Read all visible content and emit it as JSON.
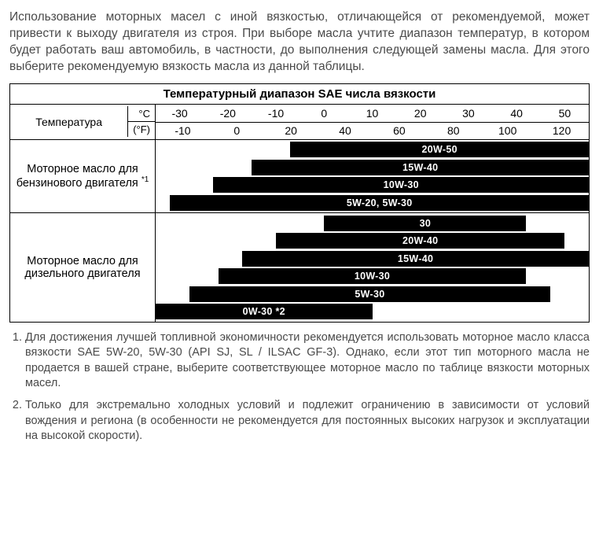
{
  "intro": "Использование моторных масел с иной вязкостью, отличающейся от рекомендуемой, может привести к выходу двигателя из строя. При выборе масла учтите диапазон температур, в котором будет работать ваш автомобиль, в частности, до выполнения следующей замены масла. Для этого выберите рекомендуемую вязкость масла из данной таблицы.",
  "table": {
    "title": "Температурный диапазон SAE числа вязкости",
    "temp_label": "Температура",
    "unit_c": "°C",
    "unit_f": "(°F)",
    "ticks_c": [
      "-30",
      "-20",
      "-10",
      "0",
      "10",
      "20",
      "30",
      "40",
      "50"
    ],
    "ticks_f": [
      "-10",
      "0",
      "20",
      "40",
      "60",
      "80",
      "100",
      "120"
    ],
    "scale_min_c": -35,
    "scale_max_c": 55,
    "groups": [
      {
        "label_html": "Моторное масло для бензинового двигателя <sup>*1</sup>",
        "bars": [
          {
            "label": "20W-50",
            "from": -7,
            "to": 55
          },
          {
            "label": "15W-40",
            "from": -15,
            "to": 55
          },
          {
            "label": "10W-30",
            "from": -23,
            "to": 55
          },
          {
            "label": "5W-20, 5W-30",
            "from": -32,
            "to": 55
          }
        ]
      },
      {
        "label_html": "Моторное масло для дизельного двигателя",
        "bars": [
          {
            "label": "30",
            "from": 0,
            "to": 42
          },
          {
            "label": "20W-40",
            "from": -10,
            "to": 50
          },
          {
            "label": "15W-40",
            "from": -17,
            "to": 55
          },
          {
            "label": "10W-30",
            "from": -22,
            "to": 42
          },
          {
            "label": "5W-30",
            "from": -28,
            "to": 47
          },
          {
            "label": "0W-30 *2",
            "from": -35,
            "to": 10
          }
        ]
      }
    ]
  },
  "notes": [
    "Для достижения лучшей топливной экономичности рекомендуется использовать моторное масло класса вязкости SAE 5W-20, 5W-30 (API SJ, SL / ILSAC GF-3). Однако, если этот тип моторного масла не продается в вашей стране, выберите соответствующее моторное масло по таблице вязкости моторных масел.",
    "Только для экстремально холодных условий и подлежит ограничению в зависимости от условий вождения и региона (в особенности не рекомендуется для постоянных высоких нагрузок и эксплуатации на высокой скорости)."
  ],
  "style": {
    "bar_bg": "#000000",
    "bar_text": "#ffffff",
    "body_text": "#4a4a4a",
    "border": "#000000"
  }
}
